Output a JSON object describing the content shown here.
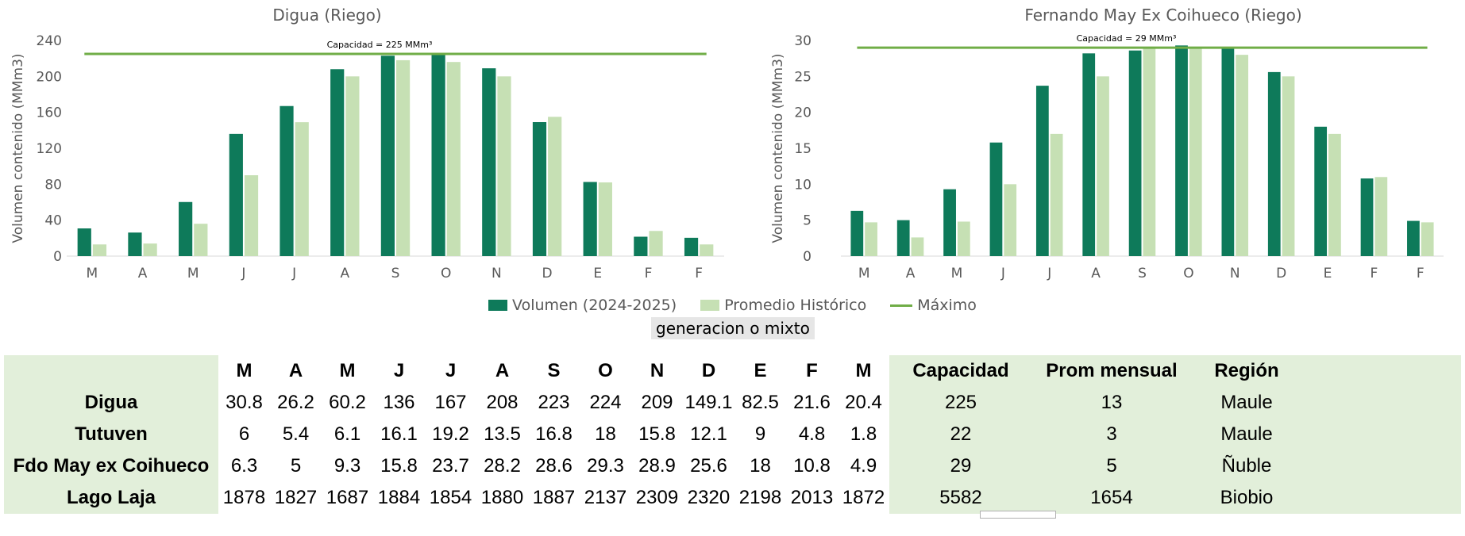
{
  "colors": {
    "volumen": "#0e7a5a",
    "promedio": "#c6e0b4",
    "maximo": "#70ad47",
    "axis_text": "#595959",
    "table_bg": "#e2efda"
  },
  "legend": {
    "volumen": "Volumen (2024-2025)",
    "promedio": "Promedio Histórico",
    "maximo": "Máximo"
  },
  "note_text": "generacion o mixto",
  "chart_data": [
    {
      "type": "bar",
      "title": "Digua (Riego)",
      "ylabel": "Volumen contenido (MMm3)",
      "categories": [
        "M",
        "A",
        "M",
        "J",
        "J",
        "A",
        "S",
        "O",
        "N",
        "D",
        "E",
        "F",
        "F"
      ],
      "ylim": [
        0,
        240
      ],
      "yticks": [
        0,
        40,
        80,
        120,
        160,
        200,
        240
      ],
      "series": [
        {
          "name": "Volumen (2024-2025)",
          "values": [
            30.8,
            26.2,
            60.2,
            136,
            167,
            208,
            223,
            224,
            209,
            149.1,
            82.5,
            21.6,
            20.4
          ]
        },
        {
          "name": "Promedio Histórico",
          "values": [
            13,
            14,
            36,
            90,
            149,
            200,
            218,
            216,
            200,
            155,
            82,
            28,
            13
          ]
        }
      ],
      "max_line": {
        "name": "Máximo",
        "value": 225,
        "label": "Capacidad = 225 MMm³"
      },
      "grid": false,
      "legend_position": "bottom"
    },
    {
      "type": "bar",
      "title": "Fernando May Ex Coihueco (Riego)",
      "ylabel": "Volumen contenido (MMm3)",
      "categories": [
        "M",
        "A",
        "M",
        "J",
        "J",
        "A",
        "S",
        "O",
        "N",
        "D",
        "E",
        "F",
        "F"
      ],
      "ylim": [
        0,
        30
      ],
      "yticks": [
        0,
        5,
        10,
        15,
        20,
        25,
        30
      ],
      "series": [
        {
          "name": "Volumen (2024-2025)",
          "values": [
            6.3,
            5,
            9.3,
            15.8,
            23.7,
            28.2,
            28.6,
            29.3,
            28.9,
            25.6,
            18,
            10.8,
            4.9
          ]
        },
        {
          "name": "Promedio Histórico",
          "values": [
            4.7,
            2.6,
            4.8,
            10,
            17,
            25,
            29,
            29,
            28,
            25,
            17,
            11,
            4.7
          ]
        }
      ],
      "max_line": {
        "name": "Máximo",
        "value": 29,
        "label": "Capacidad = 29 MMm³"
      },
      "grid": false,
      "legend_position": "bottom"
    }
  ],
  "table": {
    "headers": [
      "",
      "M",
      "A",
      "M",
      "J",
      "J",
      "A",
      "S",
      "O",
      "N",
      "D",
      "E",
      "F",
      "M",
      "Capacidad",
      "Prom mensual",
      "Región"
    ],
    "rows": [
      [
        "Digua",
        "30.8",
        "26.2",
        "60.2",
        "136",
        "167",
        "208",
        "223",
        "224",
        "209",
        "149.1",
        "82.5",
        "21.6",
        "20.4",
        "225",
        "13",
        "Maule"
      ],
      [
        "Tutuven",
        "6",
        "5.4",
        "6.1",
        "16.1",
        "19.2",
        "13.5",
        "16.8",
        "18",
        "15.8",
        "12.1",
        "9",
        "4.8",
        "1.8",
        "22",
        "3",
        "Maule"
      ],
      [
        "Fdo May ex Coihueco",
        "6.3",
        "5",
        "9.3",
        "15.8",
        "23.7",
        "28.2",
        "28.6",
        "29.3",
        "28.9",
        "25.6",
        "18",
        "10.8",
        "4.9",
        "29",
        "5",
        "Ñuble"
      ],
      [
        "Lago Laja",
        "1878",
        "1827",
        "1687",
        "1884",
        "1854",
        "1880",
        "1887",
        "2137",
        "2309",
        "2320",
        "2198",
        "2013",
        "1872",
        "5582",
        "1654",
        "Biobio"
      ]
    ]
  }
}
